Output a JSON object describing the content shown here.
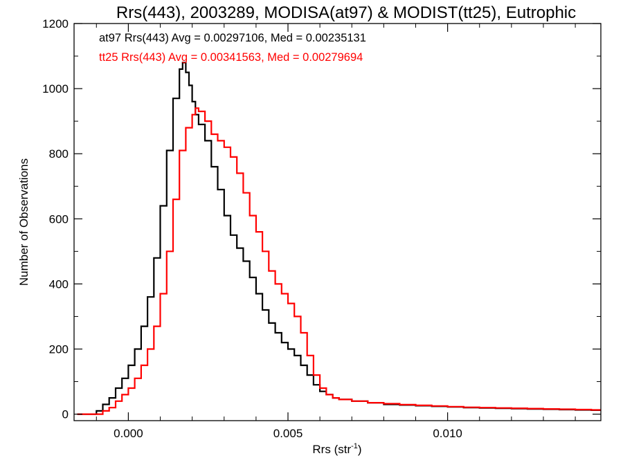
{
  "chart_data": {
    "type": "line",
    "title": "Rrs(443), 2003289, MODISA(at97) & MODIST(tt25), Eutrophic",
    "xlabel": "Rrs (str",
    "xlabel_sup": "-1",
    "xlabel_close": ")",
    "ylabel": "Number of Observations",
    "xlim": [
      -0.0017,
      0.0148
    ],
    "ylim": [
      -20,
      1200
    ],
    "xticks": [
      {
        "value": 0.0,
        "label": "0.000"
      },
      {
        "value": 0.005,
        "label": "0.005"
      },
      {
        "value": 0.01,
        "label": "0.010"
      }
    ],
    "yticks": [
      {
        "value": 0,
        "label": "0"
      },
      {
        "value": 200,
        "label": "200"
      },
      {
        "value": 400,
        "label": "400"
      },
      {
        "value": 600,
        "label": "600"
      },
      {
        "value": 800,
        "label": "800"
      },
      {
        "value": 1000,
        "label": "1000"
      },
      {
        "value": 1200,
        "label": "1200"
      }
    ],
    "legend": [
      {
        "text": "at97 Rrs(443) Avg = 0.00297106, Med = 0.00235131",
        "color": "#000000"
      },
      {
        "text": "tt25 Rrs(443) Avg = 0.00341563, Med = 0.00279694",
        "color": "#ff0000"
      }
    ],
    "series": [
      {
        "color": "#000000",
        "x": [
          -0.0016,
          -0.0012,
          -0.001,
          -0.0008,
          -0.0006,
          -0.0004,
          -0.0002,
          0.0,
          0.0002,
          0.0004,
          0.0006,
          0.0008,
          0.001,
          0.0012,
          0.0014,
          0.0016,
          0.0017,
          0.0018,
          0.0019,
          0.002,
          0.0021,
          0.0022,
          0.0024,
          0.0026,
          0.0028,
          0.003,
          0.0032,
          0.0034,
          0.0036,
          0.0038,
          0.004,
          0.0042,
          0.0044,
          0.0046,
          0.0048,
          0.005,
          0.0052,
          0.0054,
          0.0056,
          0.0058,
          0.006,
          0.0062,
          0.0064,
          0.0066,
          0.007,
          0.0075,
          0.008,
          0.0085,
          0.009,
          0.0095,
          0.01,
          0.0105,
          0.011,
          0.0115,
          0.012,
          0.0125,
          0.013,
          0.0135,
          0.014,
          0.0145,
          0.0148
        ],
        "y": [
          0,
          0,
          10,
          30,
          50,
          80,
          110,
          150,
          200,
          270,
          360,
          480,
          640,
          810,
          970,
          1060,
          1080,
          1050,
          1010,
          960,
          920,
          890,
          840,
          760,
          690,
          610,
          550,
          510,
          470,
          420,
          370,
          320,
          280,
          250,
          220,
          200,
          180,
          150,
          120,
          90,
          70,
          60,
          50,
          45,
          40,
          35,
          30,
          28,
          26,
          24,
          22,
          20,
          19,
          18,
          17,
          16,
          15,
          14,
          13,
          12,
          12
        ]
      },
      {
        "color": "#ff0000",
        "x": [
          -0.0016,
          -0.0012,
          -0.001,
          -0.0008,
          -0.0006,
          -0.0004,
          -0.0002,
          0.0,
          0.0002,
          0.0004,
          0.0006,
          0.0008,
          0.001,
          0.0012,
          0.0014,
          0.0016,
          0.0018,
          0.002,
          0.0021,
          0.0022,
          0.0024,
          0.0026,
          0.0028,
          0.003,
          0.0032,
          0.0034,
          0.0036,
          0.0038,
          0.004,
          0.0042,
          0.0044,
          0.0046,
          0.0048,
          0.005,
          0.0052,
          0.0054,
          0.0056,
          0.0058,
          0.006,
          0.0062,
          0.0064,
          0.0066,
          0.007,
          0.0075,
          0.008,
          0.0085,
          0.009,
          0.0095,
          0.01,
          0.0105,
          0.011,
          0.0115,
          0.012,
          0.0125,
          0.013,
          0.0135,
          0.014,
          0.0145,
          0.0148
        ],
        "y": [
          0,
          0,
          0,
          10,
          20,
          40,
          60,
          80,
          110,
          150,
          200,
          270,
          370,
          500,
          660,
          810,
          880,
          920,
          940,
          930,
          900,
          860,
          840,
          820,
          790,
          740,
          680,
          610,
          560,
          500,
          440,
          400,
          370,
          340,
          300,
          250,
          180,
          120,
          80,
          60,
          50,
          45,
          40,
          35,
          32,
          29,
          27,
          25,
          23,
          21,
          20,
          19,
          18,
          17,
          16,
          15,
          14,
          13,
          13
        ]
      }
    ]
  }
}
